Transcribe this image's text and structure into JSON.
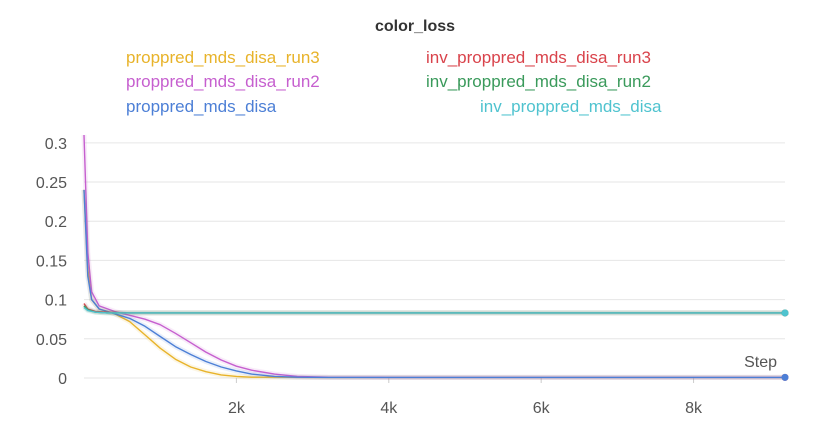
{
  "chart_data": {
    "type": "line",
    "title": "color_loss",
    "xlabel": "Step",
    "ylabel": "",
    "xlim": [
      0,
      9200
    ],
    "ylim": [
      0,
      0.31
    ],
    "x_ticks": [
      {
        "value": 2000,
        "label": "2k"
      },
      {
        "value": 4000,
        "label": "4k"
      },
      {
        "value": 6000,
        "label": "6k"
      },
      {
        "value": 8000,
        "label": "8k"
      }
    ],
    "y_ticks": [
      {
        "value": 0,
        "label": "0"
      },
      {
        "value": 0.05,
        "label": "0.05"
      },
      {
        "value": 0.1,
        "label": "0.1"
      },
      {
        "value": 0.15,
        "label": "0.15"
      },
      {
        "value": 0.2,
        "label": "0.2"
      },
      {
        "value": 0.25,
        "label": "0.25"
      },
      {
        "value": 0.3,
        "label": "0.3"
      }
    ],
    "grid": "horizontal",
    "legend_position": "top",
    "series": [
      {
        "name": "proppred_mds_disa_run3",
        "color": "#e8b32a",
        "x": [
          0,
          50,
          100,
          200,
          400,
          600,
          800,
          1000,
          1200,
          1400,
          1600,
          1800,
          2000,
          2200,
          2500,
          3000,
          4000,
          6000,
          9200
        ],
        "y": [
          0.24,
          0.14,
          0.1,
          0.088,
          0.082,
          0.072,
          0.055,
          0.038,
          0.024,
          0.014,
          0.008,
          0.004,
          0.002,
          0.001,
          0.001,
          0.0008,
          0.0008,
          0.0008,
          0.0008
        ]
      },
      {
        "name": "proppred_mds_disa_run2",
        "color": "#c65fcf",
        "x": [
          0,
          50,
          100,
          200,
          400,
          600,
          800,
          1000,
          1200,
          1400,
          1600,
          1800,
          2000,
          2200,
          2500,
          2800,
          3200,
          4000,
          6000,
          9200
        ],
        "y": [
          0.31,
          0.16,
          0.11,
          0.092,
          0.085,
          0.08,
          0.075,
          0.068,
          0.057,
          0.045,
          0.033,
          0.023,
          0.015,
          0.01,
          0.005,
          0.002,
          0.001,
          0.0008,
          0.0008,
          0.0008
        ]
      },
      {
        "name": "proppred_mds_disa",
        "color": "#4c7fd6",
        "x": [
          0,
          50,
          100,
          200,
          400,
          600,
          800,
          1000,
          1200,
          1400,
          1600,
          1800,
          2000,
          2200,
          2500,
          2800,
          3200,
          4000,
          6000,
          9200
        ],
        "y": [
          0.24,
          0.13,
          0.1,
          0.088,
          0.082,
          0.076,
          0.066,
          0.053,
          0.04,
          0.03,
          0.021,
          0.014,
          0.009,
          0.005,
          0.002,
          0.001,
          0.0008,
          0.0008,
          0.0008,
          0.0008
        ]
      },
      {
        "name": "inv_proppred_mds_disa_run3",
        "color": "#d9434b",
        "x": [
          0,
          50,
          150,
          300,
          600,
          1000,
          2000,
          3000,
          4000,
          5000,
          6000,
          7000,
          8000,
          9200
        ],
        "y": [
          0.095,
          0.088,
          0.085,
          0.084,
          0.083,
          0.083,
          0.083,
          0.083,
          0.083,
          0.083,
          0.083,
          0.083,
          0.083,
          0.083
        ]
      },
      {
        "name": "inv_proppred_mds_disa_run2",
        "color": "#3a9a5b",
        "x": [
          0,
          50,
          150,
          300,
          600,
          1000,
          2000,
          3000,
          4000,
          5000,
          6000,
          7000,
          8000,
          9200
        ],
        "y": [
          0.092,
          0.087,
          0.084,
          0.083,
          0.083,
          0.083,
          0.083,
          0.083,
          0.083,
          0.083,
          0.083,
          0.083,
          0.083,
          0.083
        ]
      },
      {
        "name": "inv_proppred_mds_disa",
        "color": "#4fc3cf",
        "x": [
          0,
          50,
          150,
          300,
          600,
          1000,
          2000,
          3000,
          4000,
          5000,
          6000,
          7000,
          8000,
          9200
        ],
        "y": [
          0.09,
          0.086,
          0.084,
          0.083,
          0.083,
          0.083,
          0.083,
          0.083,
          0.083,
          0.083,
          0.083,
          0.083,
          0.083,
          0.083
        ]
      }
    ]
  }
}
